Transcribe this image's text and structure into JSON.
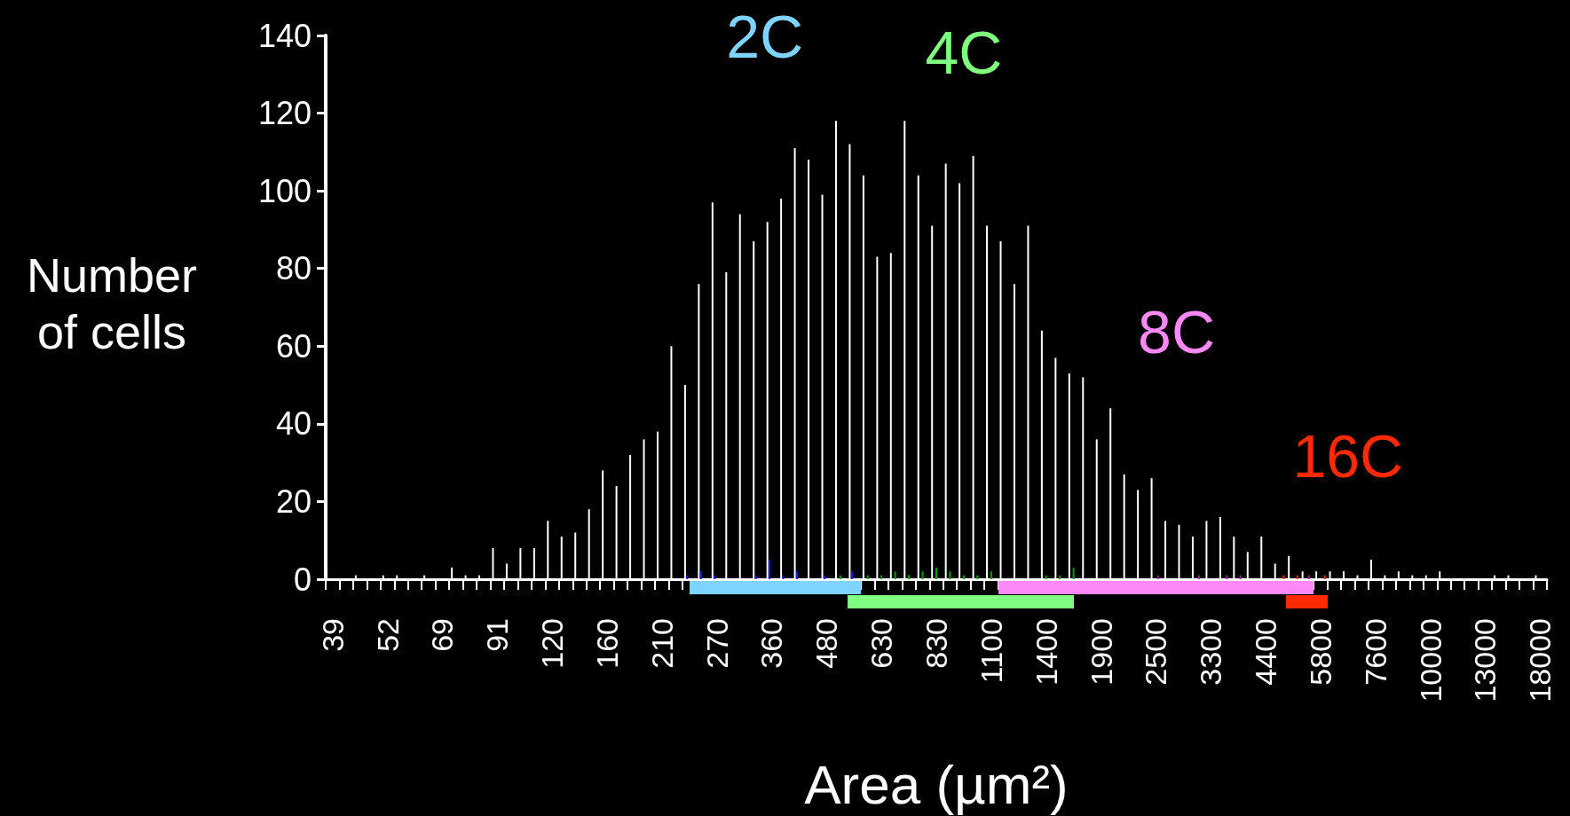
{
  "chart_data": {
    "type": "bar",
    "xlabel": "Area (µm²)",
    "ylabel": "Number of cells",
    "categories": [
      "39",
      null,
      null,
      null,
      "52",
      null,
      null,
      null,
      "69",
      null,
      null,
      null,
      "91",
      null,
      null,
      null,
      "120",
      null,
      null,
      null,
      "160",
      null,
      null,
      null,
      "210",
      null,
      null,
      null,
      "270",
      null,
      null,
      null,
      "360",
      null,
      null,
      null,
      "480",
      null,
      null,
      null,
      "630",
      null,
      null,
      null,
      "830",
      null,
      null,
      null,
      "1100",
      null,
      null,
      null,
      "1400",
      null,
      null,
      null,
      "1900",
      null,
      null,
      null,
      "2500",
      null,
      null,
      null,
      "3300",
      null,
      null,
      null,
      "4400",
      null,
      null,
      null,
      "5800",
      null,
      null,
      null,
      "7600",
      null,
      null,
      null,
      "10000",
      null,
      null,
      null,
      "13000",
      null,
      null,
      null,
      "18000"
    ],
    "series": [
      {
        "color": "#ffffff",
        "values": [
          0,
          0,
          1,
          0,
          1,
          1,
          0,
          1,
          0,
          3,
          1,
          1,
          8,
          4,
          8,
          8,
          15,
          11,
          12,
          18,
          28,
          24,
          32,
          36,
          38,
          60,
          50,
          76,
          97,
          79,
          94,
          87,
          92,
          98,
          111,
          108,
          99,
          118,
          112,
          104,
          83,
          84,
          118,
          104,
          91,
          107,
          102,
          109,
          91,
          87,
          76,
          91,
          64,
          57,
          53,
          52,
          36,
          44,
          27,
          23,
          26,
          15,
          14,
          11,
          15,
          16,
          11,
          7,
          11,
          4,
          6,
          2,
          2,
          2,
          2,
          1,
          5,
          1,
          2,
          1,
          1,
          2,
          0,
          0,
          0,
          1,
          1,
          0,
          1
        ]
      },
      {
        "color": "#1a1aff",
        "values": [
          0,
          0,
          0,
          0,
          0,
          0,
          0,
          0,
          0,
          0,
          0,
          0,
          0,
          0,
          0,
          0,
          0,
          0,
          0,
          0,
          0,
          0,
          0,
          0,
          0,
          0,
          1,
          2,
          1,
          0,
          0,
          1,
          5,
          1,
          2,
          0,
          1,
          0,
          2,
          0,
          0,
          0,
          0,
          0,
          0,
          0,
          0,
          0,
          0,
          0,
          0,
          0,
          0,
          0,
          0,
          0,
          0,
          0,
          0,
          0,
          0,
          0,
          0,
          0,
          0,
          0,
          0,
          0,
          0,
          0,
          0,
          0,
          0,
          0,
          0,
          0,
          0,
          0,
          0,
          0,
          0,
          0,
          0,
          0,
          0,
          0,
          0,
          0,
          0
        ]
      },
      {
        "color": "#00a000",
        "values": [
          0,
          0,
          0,
          0,
          0,
          0,
          0,
          0,
          0,
          0,
          0,
          0,
          0,
          0,
          0,
          0,
          0,
          0,
          0,
          0,
          0,
          0,
          0,
          0,
          0,
          0,
          0,
          0,
          0,
          0,
          0,
          0,
          0,
          0,
          0,
          0,
          0,
          1,
          0,
          1,
          1,
          2,
          1,
          2,
          3,
          2,
          1,
          1,
          2,
          0,
          0,
          0,
          1,
          1,
          3,
          0,
          0,
          0,
          0,
          0,
          0,
          0,
          0,
          0,
          0,
          0,
          0,
          0,
          0,
          0,
          0,
          0,
          0,
          0,
          0,
          0,
          0,
          0,
          0,
          0,
          0,
          0,
          0,
          0,
          0,
          0,
          0,
          0,
          0
        ]
      },
      {
        "color": "#a020a0",
        "values": [
          0,
          0,
          0,
          0,
          0,
          0,
          0,
          0,
          0,
          0,
          0,
          0,
          0,
          0,
          0,
          0,
          0,
          0,
          0,
          0,
          0,
          0,
          0,
          0,
          0,
          0,
          0,
          0,
          0,
          0,
          0,
          0,
          0,
          0,
          0,
          0,
          0,
          0,
          0,
          0,
          0,
          0,
          0,
          0,
          0,
          0,
          0,
          0,
          0,
          0,
          0,
          0,
          0,
          0,
          0,
          0,
          0,
          0,
          0,
          0,
          1,
          0,
          0,
          1,
          0,
          1,
          1,
          0,
          0,
          0,
          0,
          1,
          0,
          0,
          0,
          0,
          0,
          0,
          0,
          0,
          0,
          0,
          0,
          0,
          0,
          0,
          0,
          0,
          0
        ]
      },
      {
        "color": "#ff2a00",
        "values": [
          0,
          0,
          0,
          0,
          0,
          0,
          0,
          0,
          0,
          0,
          0,
          0,
          0,
          0,
          0,
          0,
          0,
          0,
          0,
          0,
          0,
          0,
          0,
          0,
          0,
          0,
          0,
          0,
          0,
          0,
          0,
          0,
          0,
          0,
          0,
          0,
          0,
          0,
          0,
          0,
          0,
          0,
          0,
          0,
          0,
          0,
          0,
          0,
          0,
          0,
          0,
          0,
          0,
          0,
          0,
          0,
          0,
          0,
          0,
          0,
          0,
          0,
          0,
          0,
          0,
          0,
          0,
          0,
          0,
          1,
          1,
          0,
          1,
          0,
          0,
          0,
          0,
          0,
          0,
          0,
          0,
          0,
          0,
          0,
          0,
          0,
          0,
          0,
          0
        ]
      }
    ],
    "ylim": [
      0,
      140
    ],
    "yticks": [
      0,
      20,
      40,
      60,
      80,
      100,
      120,
      140
    ],
    "annotations": [
      "2C",
      "4C",
      "8C",
      "16C"
    ],
    "grid": false
  }
}
